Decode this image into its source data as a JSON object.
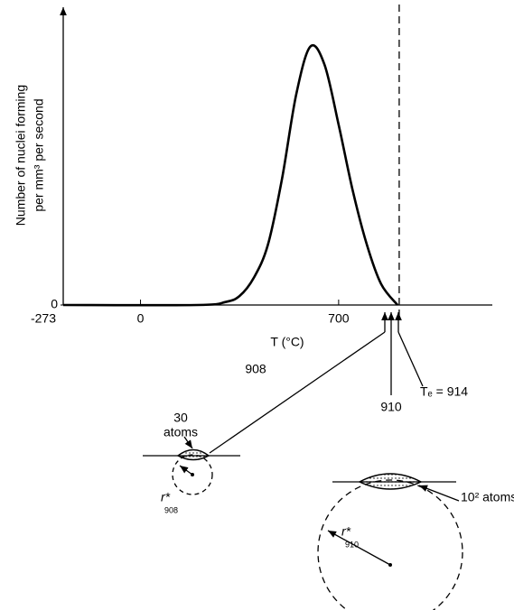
{
  "chart_data": {
    "type": "line",
    "y_label": [
      "Number of nuclei forming",
      "per mm³ per second"
    ],
    "x_label": "T (°C)",
    "x": [
      -273,
      200,
      300,
      350,
      400,
      450,
      500,
      550,
      600,
      650,
      700,
      750,
      800,
      850,
      908
    ],
    "values": [
      0,
      0,
      1,
      3,
      9,
      20,
      42,
      70,
      86,
      80,
      60,
      38,
      20,
      7,
      0
    ],
    "color": "#000000",
    "xlim": [
      -273,
      1243
    ],
    "ylim": [
      0,
      100
    ],
    "xticks": [
      -273,
      0,
      700
    ],
    "yticks": [
      0
    ],
    "equilibrium": {
      "value": 914,
      "label": "Tₑ = 914"
    },
    "markers": [
      908,
      910
    ],
    "nuclei": [
      {
        "size_label": [
          "30",
          "atoms"
        ],
        "radius": {
          "symbol": "r*",
          "subscript": "908"
        }
      },
      {
        "size_label": [
          "10² atoms"
        ],
        "radius": {
          "symbol": "r*",
          "subscript": "910"
        }
      }
    ]
  }
}
